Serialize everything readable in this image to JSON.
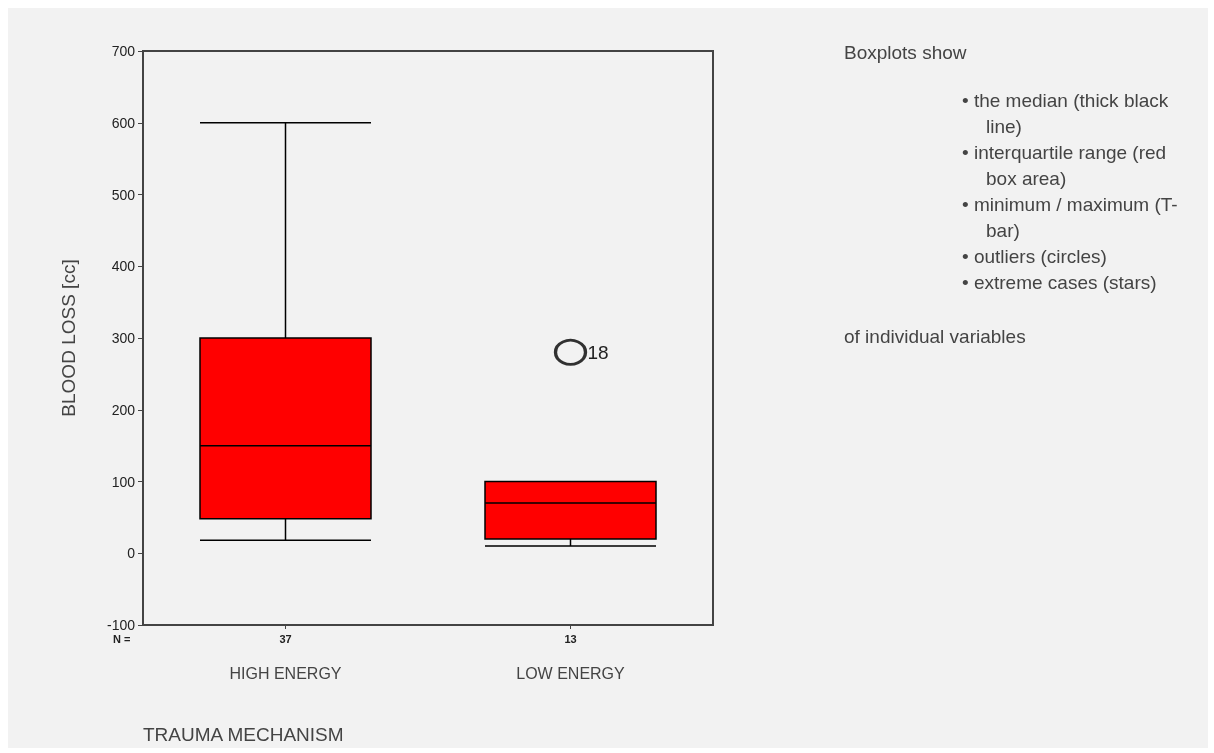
{
  "chart_data": {
    "type": "box",
    "xlabel": "TRAUMA MECHANISM",
    "ylabel": "BLOOD LOSS [cc]",
    "categories": [
      "HIGH ENERGY",
      "LOW ENERGY"
    ],
    "series": [
      {
        "color": "#ff0000",
        "boxes": [
          {
            "low": 18,
            "q1": 48,
            "median": 150,
            "q3": 300,
            "high": 600
          },
          {
            "low": 10,
            "q1": 20,
            "median": 70,
            "q3": 100,
            "high": 100,
            "outliers": [
              280
            ]
          }
        ]
      }
    ],
    "ylim": [
      -100,
      700
    ],
    "yticks": [
      -100,
      0,
      100,
      200,
      300,
      400,
      500,
      600,
      700
    ],
    "grid": false,
    "annotations": [
      "N =",
      "37",
      "13",
      "18",
      "Boxplots show",
      "• the median (thick black line)",
      "• interquartile range (red box area)",
      "• minimum / maximum (T-bar)",
      "• outliers (circles)",
      "• extreme cases (stars)",
      "of individual variables"
    ]
  }
}
